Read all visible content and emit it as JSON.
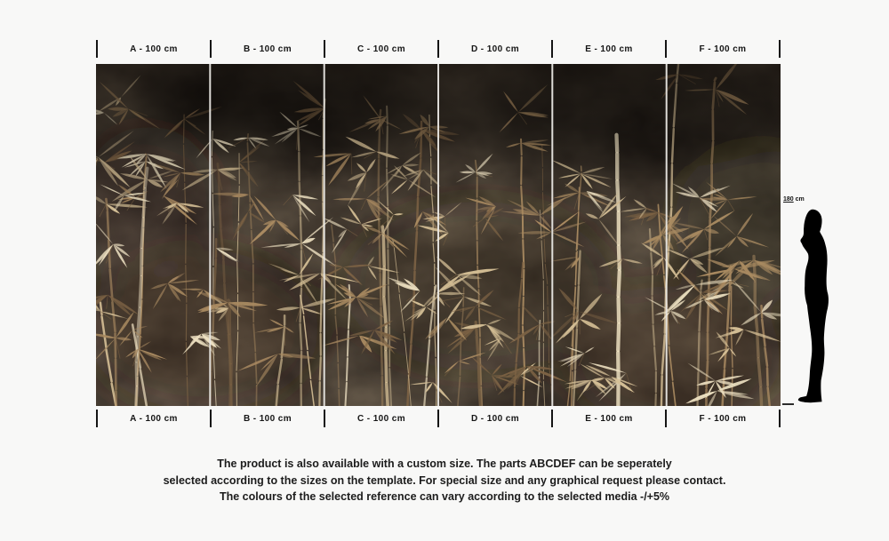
{
  "page": {
    "background": "#f8f8f7"
  },
  "ruler": {
    "labels": [
      "A - 100 cm",
      "B - 100 cm",
      "C - 100 cm",
      "D - 100 cm",
      "E - 100 cm",
      "F - 100 cm"
    ]
  },
  "mural": {
    "panel_count": 6,
    "subject": "bamboo-forest-wallpaper",
    "colors": {
      "background": "#191310",
      "texture_brown": "#382c1e",
      "bamboo_dark": "#7c6244",
      "bamboo_mid": "#a98a61",
      "bamboo_light": "#d5bf96",
      "bamboo_highlight": "#ecdfc0",
      "separator": "#e9e7e3"
    }
  },
  "scale_figure": {
    "value": "180",
    "unit": "cm"
  },
  "footer": {
    "lines": [
      "The product is also available with a custom size. The parts ABCDEF can be seperately",
      "selected according to the sizes on the template. For special size and any graphical request please contact.",
      "The colours of the selected reference can vary according to the selected media -/+5%"
    ]
  }
}
